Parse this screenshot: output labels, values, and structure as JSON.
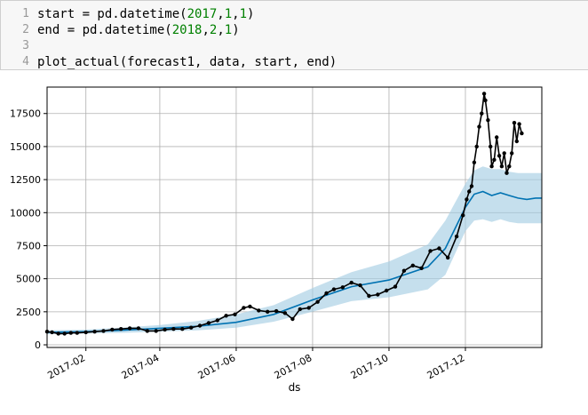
{
  "code_cell": {
    "lines": [
      {
        "number": "1",
        "parts": [
          [
            "start = pd.datetime(",
            ""
          ],
          [
            "2017",
            "num"
          ],
          [
            ",",
            ""
          ],
          [
            "1",
            "num"
          ],
          [
            ",",
            ""
          ],
          [
            "1",
            "num"
          ],
          [
            ")",
            ""
          ]
        ]
      },
      {
        "number": "2",
        "parts": [
          [
            "end = pd.datetime(",
            ""
          ],
          [
            "2018",
            "num"
          ],
          [
            ",",
            ""
          ],
          [
            "2",
            "num"
          ],
          [
            ",",
            ""
          ],
          [
            "1",
            "num"
          ],
          [
            ")",
            ""
          ]
        ]
      },
      {
        "number": "3",
        "parts": []
      },
      {
        "number": "4",
        "parts": [
          [
            "plot_actual(forecast1, data, start, end)",
            ""
          ]
        ]
      }
    ]
  },
  "chart_data": {
    "type": "line",
    "xlabel": "ds",
    "ylabel": "",
    "x_range": [
      "2017-01-01",
      "2018-01-31"
    ],
    "ylim": [
      -200,
      19500
    ],
    "grid": true,
    "x_tick_labels": [
      "2017-02",
      "2017-04",
      "2017-06",
      "2017-08",
      "2017-10",
      "2017-12"
    ],
    "y_tick_labels": [
      "0",
      "2500",
      "5000",
      "7500",
      "10000",
      "12500",
      "15000",
      "17500"
    ],
    "colors": {
      "actual": "#000000",
      "forecast": "#0072b2",
      "band": "#a6cee3"
    },
    "series": [
      {
        "role": "actual",
        "x": [
          "2017-01-01",
          "2017-01-05",
          "2017-01-10",
          "2017-01-15",
          "2017-01-20",
          "2017-01-25",
          "2017-02-01",
          "2017-02-08",
          "2017-02-15",
          "2017-02-22",
          "2017-03-01",
          "2017-03-08",
          "2017-03-15",
          "2017-03-22",
          "2017-03-29",
          "2017-04-05",
          "2017-04-12",
          "2017-04-19",
          "2017-04-26",
          "2017-05-03",
          "2017-05-10",
          "2017-05-17",
          "2017-05-24",
          "2017-05-31",
          "2017-06-07",
          "2017-06-12",
          "2017-06-19",
          "2017-06-26",
          "2017-07-03",
          "2017-07-10",
          "2017-07-16",
          "2017-07-22",
          "2017-07-29",
          "2017-08-05",
          "2017-08-12",
          "2017-08-18",
          "2017-08-25",
          "2017-09-01",
          "2017-09-08",
          "2017-09-15",
          "2017-09-22",
          "2017-09-29",
          "2017-10-06",
          "2017-10-13",
          "2017-10-20",
          "2017-10-27",
          "2017-11-03",
          "2017-11-10",
          "2017-11-17",
          "2017-11-24",
          "2017-11-29",
          "2017-12-02",
          "2017-12-04",
          "2017-12-06",
          "2017-12-08",
          "2017-12-10",
          "2017-12-12",
          "2017-12-14",
          "2017-12-16",
          "2017-12-17",
          "2017-12-19",
          "2017-12-21",
          "2017-12-22",
          "2017-12-24",
          "2017-12-26",
          "2017-12-28",
          "2017-12-30",
          "2018-01-01",
          "2018-01-03",
          "2018-01-05",
          "2018-01-07",
          "2018-01-09",
          "2018-01-11",
          "2018-01-13",
          "2018-01-15"
        ],
        "y": [
          1000,
          950,
          850,
          850,
          900,
          900,
          950,
          1000,
          1050,
          1150,
          1200,
          1250,
          1250,
          1050,
          1050,
          1150,
          1200,
          1200,
          1300,
          1450,
          1650,
          1850,
          2200,
          2300,
          2800,
          2900,
          2600,
          2500,
          2550,
          2400,
          1950,
          2700,
          2800,
          3250,
          3900,
          4200,
          4350,
          4700,
          4500,
          3700,
          3800,
          4100,
          4400,
          5600,
          6000,
          5800,
          7100,
          7300,
          6600,
          8200,
          9800,
          11000,
          11600,
          12000,
          13800,
          15000,
          16500,
          17500,
          19000,
          18500,
          17000,
          15000,
          13500,
          14000,
          15700,
          14300,
          13500,
          14500,
          13000,
          13500,
          14500,
          16800,
          15400,
          16700,
          16000
        ]
      },
      {
        "role": "forecast",
        "x": [
          "2017-01-01",
          "2017-02-01",
          "2017-03-01",
          "2017-04-01",
          "2017-05-01",
          "2017-06-01",
          "2017-07-01",
          "2017-08-01",
          "2017-09-01",
          "2017-10-01",
          "2017-11-01",
          "2017-11-15",
          "2017-12-01",
          "2017-12-08",
          "2017-12-15",
          "2017-12-22",
          "2017-12-29",
          "2018-01-05",
          "2018-01-12",
          "2018-01-19",
          "2018-01-26",
          "2018-01-31"
        ],
        "y": [
          950,
          1000,
          1100,
          1250,
          1400,
          1700,
          2300,
          3400,
          4400,
          4900,
          5900,
          7300,
          10400,
          11400,
          11600,
          11300,
          11500,
          11300,
          11100,
          11000,
          11100,
          11100
        ],
        "lower": [
          800,
          850,
          900,
          1000,
          1100,
          1300,
          1750,
          2500,
          3300,
          3600,
          4200,
          5300,
          8600,
          9400,
          9500,
          9300,
          9500,
          9300,
          9200,
          9200,
          9200,
          9200
        ],
        "upper": [
          1100,
          1150,
          1300,
          1500,
          1800,
          2300,
          3000,
          4300,
          5500,
          6300,
          7600,
          9400,
          12200,
          13200,
          13500,
          13300,
          13300,
          13100,
          13000,
          13000,
          13000,
          13000
        ]
      }
    ]
  }
}
